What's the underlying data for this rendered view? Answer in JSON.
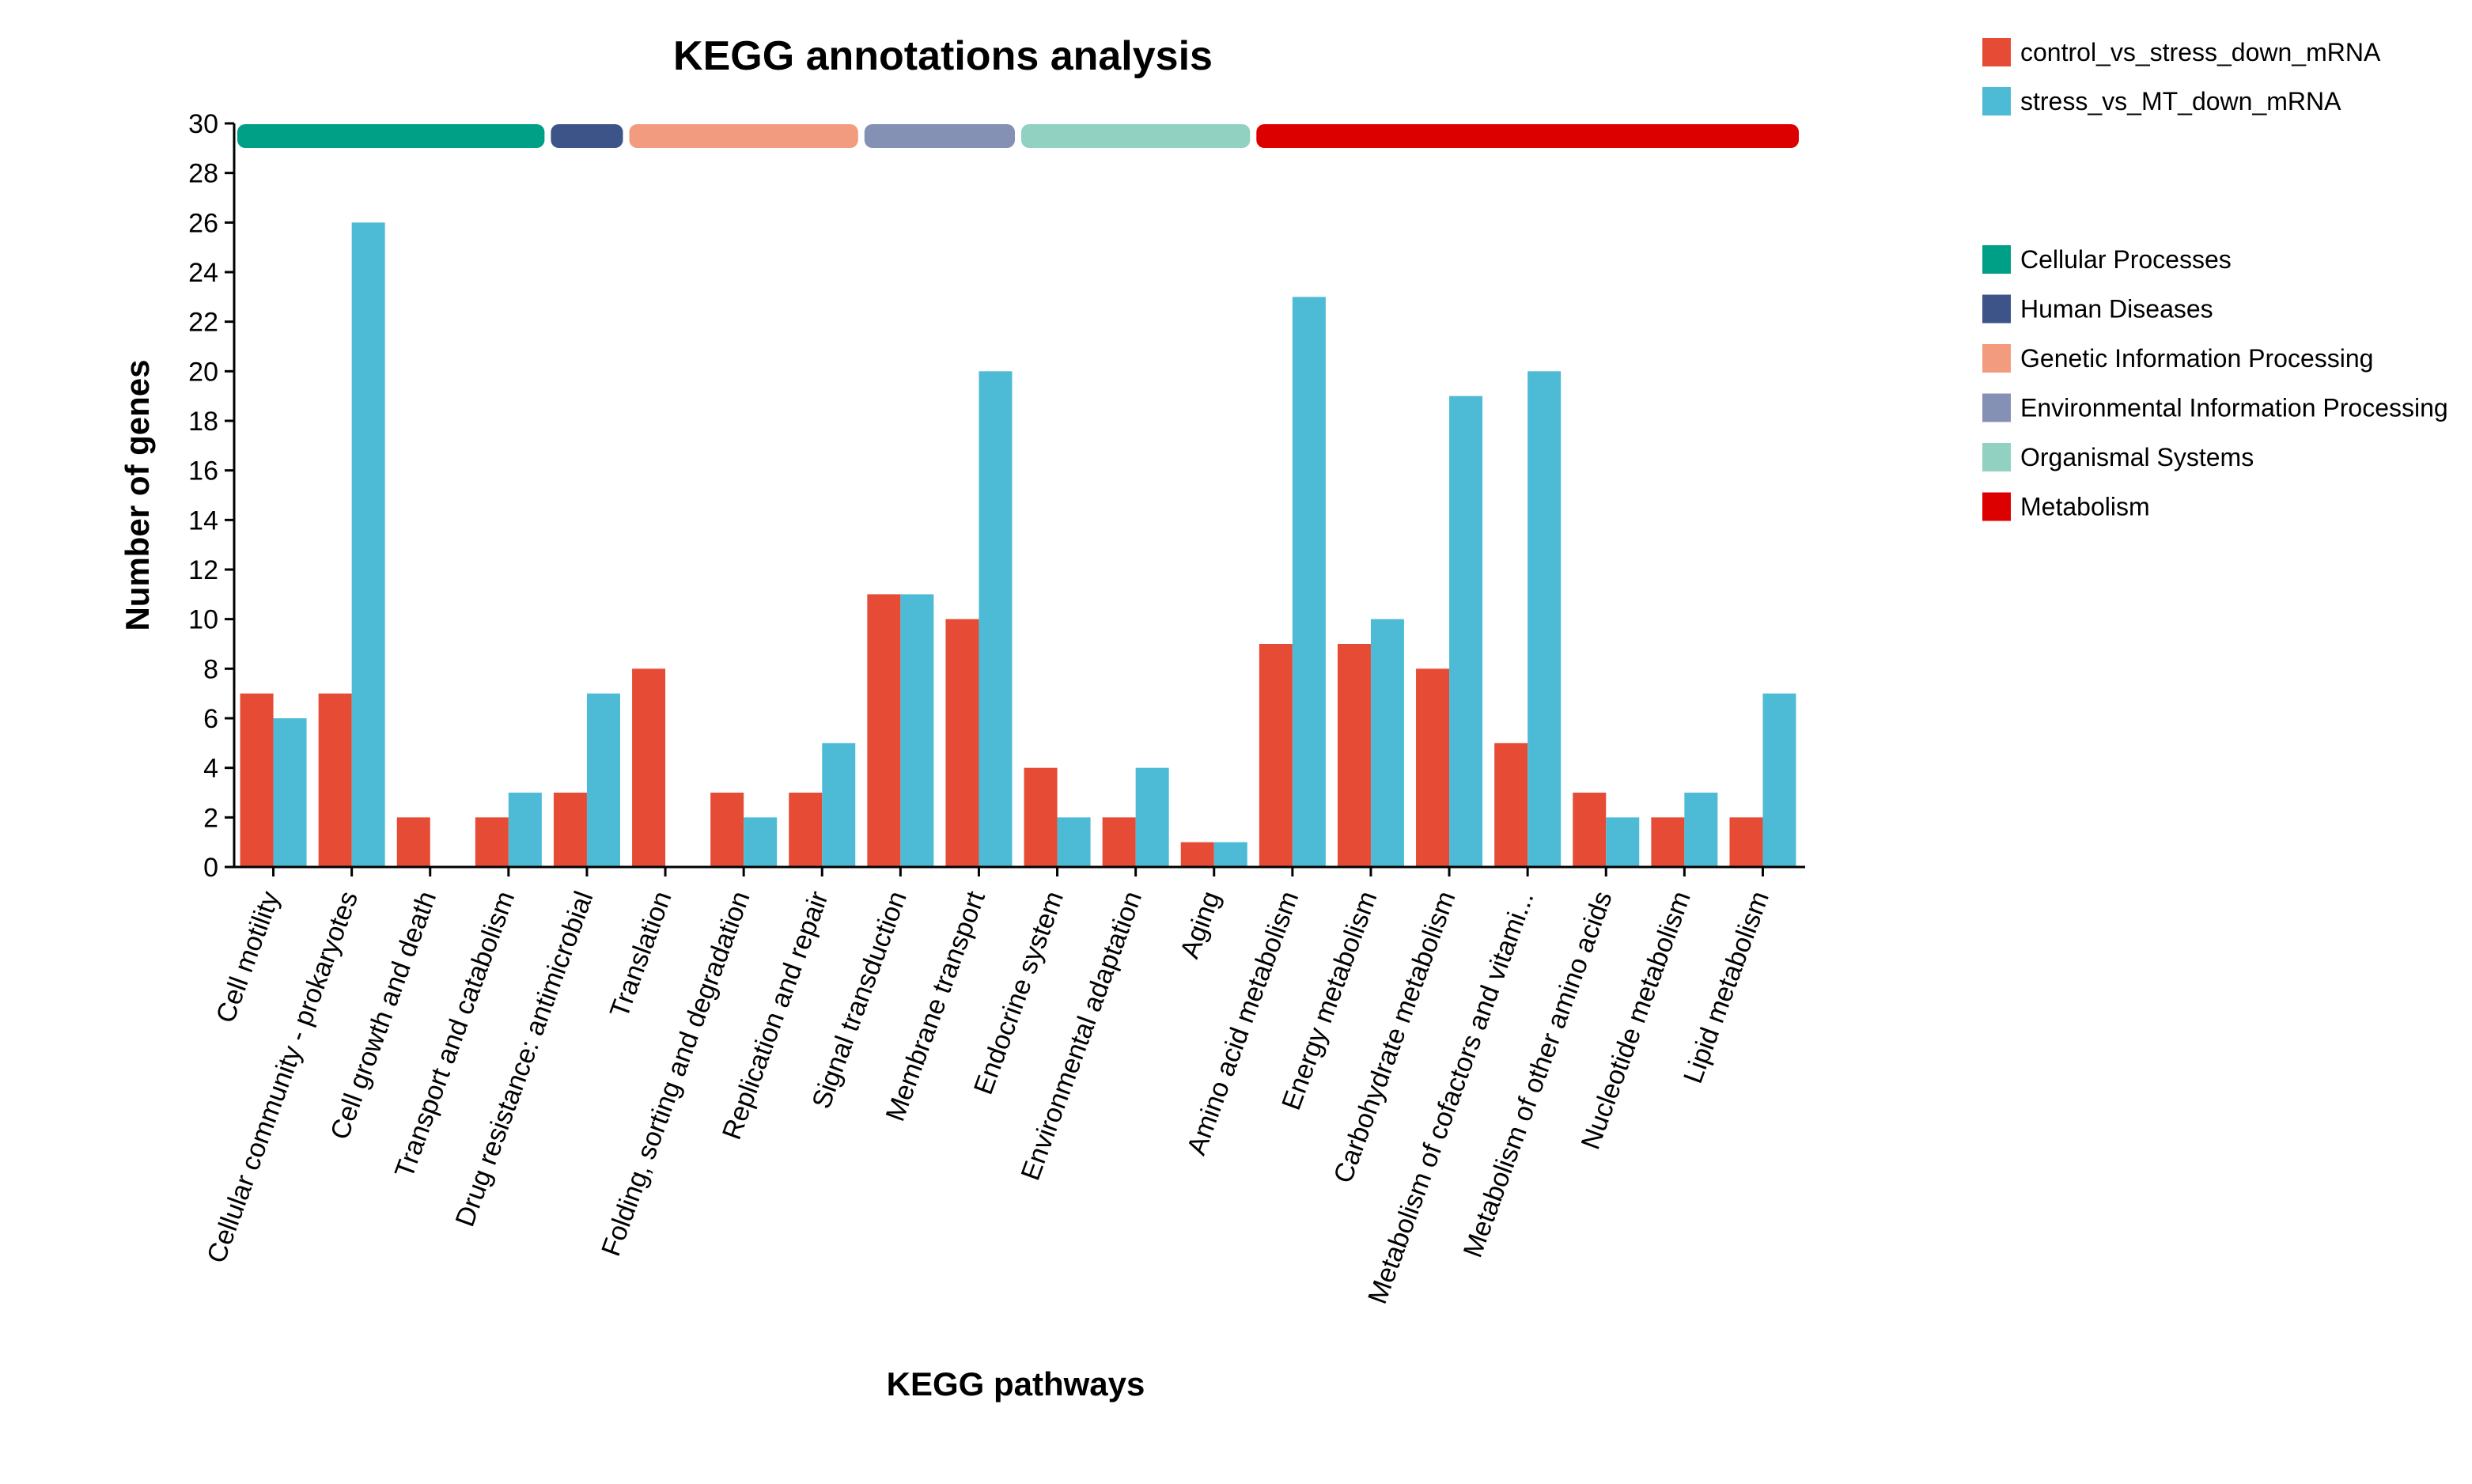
{
  "chart_data": {
    "type": "bar",
    "title": "KEGG annotations analysis",
    "xlabel": "KEGG pathways",
    "ylabel": "Number of genes",
    "ylim": [
      0,
      30
    ],
    "yticks": [
      0,
      2,
      4,
      6,
      8,
      10,
      12,
      14,
      16,
      18,
      20,
      22,
      24,
      26,
      28,
      30
    ],
    "categories": [
      "Cell motility",
      "Cellular community - prokaryotes",
      "Cell growth and death",
      "Transport and catabolism",
      "Drug resistance: antimicrobial",
      "Translation",
      "Folding, sorting and degradation",
      "Replication and repair",
      "Signal transduction",
      "Membrane transport",
      "Endocrine system",
      "Environmental adaptation",
      "Aging",
      "Amino acid metabolism",
      "Energy metabolism",
      "Carbohydrate metabolism",
      "Metabolism of cofactors and vitami...",
      "Metabolism of other amino acids",
      "Nucleotide metabolism",
      "Lipid metabolism"
    ],
    "series": [
      {
        "name": "control_vs_stress_down_mRNA",
        "color": "#e64b35",
        "values": [
          7,
          7,
          2,
          2,
          3,
          8,
          3,
          3,
          11,
          10,
          4,
          2,
          1,
          9,
          9,
          8,
          5,
          3,
          2,
          2
        ]
      },
      {
        "name": "stress_vs_MT_down_mRNA",
        "color": "#4dbbd5",
        "values": [
          6,
          26,
          0,
          3,
          7,
          0,
          2,
          5,
          11,
          20,
          2,
          4,
          1,
          23,
          10,
          19,
          20,
          2,
          3,
          7
        ]
      }
    ],
    "groups": [
      {
        "name": "Cellular Processes",
        "color": "#00a087",
        "start": 0,
        "end": 3
      },
      {
        "name": "Human Diseases",
        "color": "#3c5488",
        "start": 4,
        "end": 4
      },
      {
        "name": "Genetic Information Processing",
        "color": "#f39b7f",
        "start": 5,
        "end": 7
      },
      {
        "name": "Environmental Information Processing",
        "color": "#8491b4",
        "start": 8,
        "end": 9
      },
      {
        "name": "Organismal Systems",
        "color": "#91d1c2",
        "start": 10,
        "end": 12
      },
      {
        "name": "Metabolism",
        "color": "#dc0000",
        "start": 13,
        "end": 19
      }
    ],
    "grid": false,
    "legend_position": "right"
  }
}
